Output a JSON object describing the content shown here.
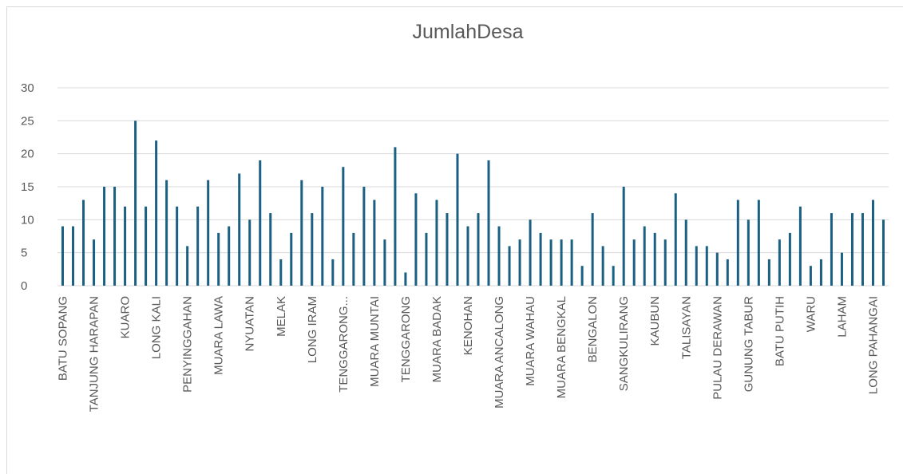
{
  "chart_data": {
    "type": "bar",
    "title": "JumlahDesa",
    "categories": [
      "BATU SOPANG",
      null,
      null,
      "TANJUNG HARAPAN",
      null,
      null,
      "KUARO",
      null,
      null,
      "LONG KALI",
      null,
      null,
      "PENYINGGAHAN",
      null,
      null,
      "MUARA LAWA",
      null,
      null,
      "NYUATAN",
      null,
      null,
      "MELAK",
      null,
      null,
      "LONG IRAM",
      null,
      null,
      "TENGGARONG...",
      null,
      null,
      "MUARA MUNTAI",
      null,
      null,
      "TENGGARONG",
      null,
      null,
      "MUARA BADAK",
      null,
      null,
      "KENOHAN",
      null,
      null,
      "MUARA ANCALONG",
      null,
      null,
      "MUARA WAHAU",
      null,
      null,
      "MUARA BENGKAL",
      null,
      null,
      "BENGALON",
      null,
      null,
      "SANGKULIRANG",
      null,
      null,
      "KAUBUN",
      null,
      null,
      "TALISAYAN",
      null,
      null,
      "PULAU DERAWAN",
      null,
      null,
      "GUNUNG TABUR",
      null,
      null,
      "BATU PUTIH",
      null,
      null,
      "WARU",
      null,
      null,
      "LAHAM",
      null,
      null,
      "LONG PAHANGAI",
      null
    ],
    "values": [
      9,
      9,
      13,
      7,
      15,
      15,
      12,
      25,
      12,
      22,
      16,
      12,
      6,
      12,
      16,
      8,
      9,
      17,
      10,
      19,
      11,
      4,
      8,
      16,
      11,
      15,
      4,
      18,
      8,
      15,
      13,
      7,
      21,
      2,
      14,
      8,
      13,
      11,
      20,
      9,
      11,
      19,
      9,
      6,
      7,
      10,
      8,
      7,
      7,
      7,
      3,
      11,
      6,
      3,
      15,
      7,
      9,
      8,
      7,
      14,
      10,
      6,
      6,
      5,
      4,
      13,
      10,
      13,
      4,
      7,
      8,
      12,
      3,
      4,
      11,
      5,
      11,
      11,
      13,
      10
    ],
    "color": "#1a6082",
    "ylim": [
      0,
      30
    ],
    "yticks": [
      0,
      5,
      10,
      15,
      20,
      25,
      30
    ],
    "grid": true
  }
}
